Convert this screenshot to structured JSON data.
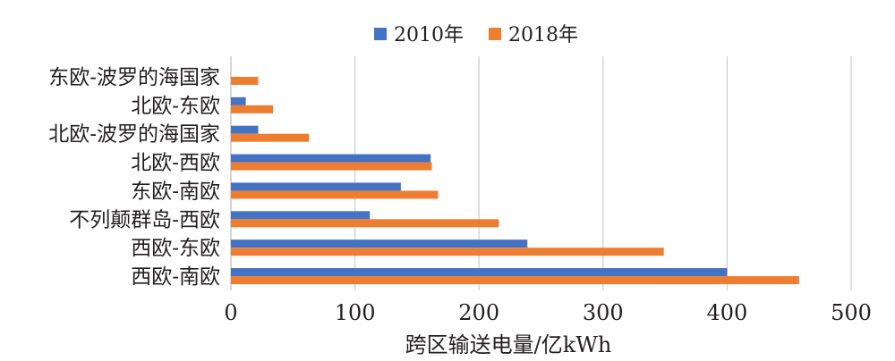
{
  "chart_data": {
    "type": "bar",
    "orientation": "horizontal",
    "categories": [
      "东欧-波罗的海国家",
      "北欧-东欧",
      "北欧-波罗的海国家",
      "北欧-西欧",
      "东欧-南欧",
      "不列颠群岛-西欧",
      "西欧-东欧",
      "西欧-南欧"
    ],
    "series": [
      {
        "name": "2010年",
        "color": "#4472c4",
        "values": [
          0,
          12,
          22,
          161,
          137,
          112,
          239,
          400
        ]
      },
      {
        "name": "2018年",
        "color": "#ed7d31",
        "values": [
          22,
          34,
          63,
          162,
          167,
          216,
          349,
          458
        ]
      }
    ],
    "xlabel": "跨区输送电量/亿kWh",
    "ylabel": "",
    "xlim": [
      0,
      500
    ],
    "xticks": [
      0,
      100,
      200,
      300,
      400,
      500
    ],
    "grid": true,
    "legend_position": "top-center"
  }
}
